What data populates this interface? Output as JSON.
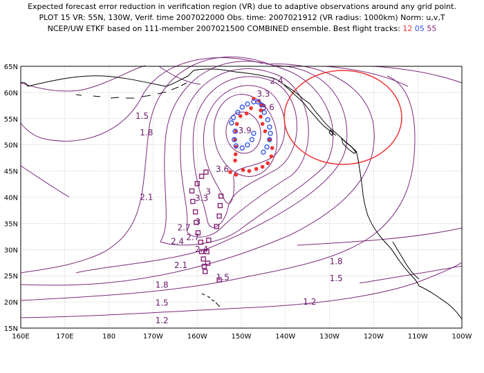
{
  "title": {
    "line1": "Expected forecast error reduction in verification region (VR) due to adaptive observations around any grid point.",
    "line2": "PLOT 15 VR: 55N, 130W, Verif. time 2007022000 Obs. time: 2007021912 (VR radius: 1000km) Norm: u,v,T",
    "line3_prefix": "NCEP/UW ETKF based on 111-member 2007021500 COMBINED ensemble.  Best flight tracks: ",
    "track1": "12",
    "track2": "05",
    "track3": "55"
  },
  "colors": {
    "track1": "#ee3333",
    "track2": "#3355ee",
    "track3": "#882277",
    "contour": "#7a2a7a",
    "vr_circle": "#ee3333",
    "land": "#000000"
  },
  "axes": {
    "lat_labels": [
      "65N",
      "60N",
      "55N",
      "50N",
      "45N",
      "40N",
      "35N",
      "30N",
      "25N",
      "20N",
      "15N"
    ],
    "lon_labels": [
      "160E",
      "170E",
      "180",
      "170W",
      "160W",
      "150W",
      "140W",
      "130W",
      "120W",
      "110W",
      "100W"
    ]
  },
  "contour_labels": [
    {
      "text": "1.5"
    },
    {
      "text": "1.8"
    },
    {
      "text": "2.1"
    },
    {
      "text": "2.4"
    },
    {
      "text": "2.7"
    },
    {
      "text": "3"
    },
    {
      "text": "3.3"
    },
    {
      "text": "3.6"
    },
    {
      "text": "3.9"
    },
    {
      "text": "2.1"
    },
    {
      "text": "1.8"
    },
    {
      "text": "1.5"
    },
    {
      "text": "1.2"
    },
    {
      "text": "1.5"
    },
    {
      "text": "1.8"
    },
    {
      "text": "1.2"
    },
    {
      "text": "2.4"
    },
    {
      "text": "2.7"
    },
    {
      "text": "3"
    },
    {
      "text": "3.3"
    },
    {
      "text": "3.6"
    },
    {
      "text": "2.4"
    },
    {
      "text": "1.5"
    }
  ],
  "verification_region": {
    "center_lat": 55,
    "center_lon": -130,
    "radius_km": 1000
  },
  "flight_tracks": [
    {
      "name": "12",
      "points": [
        [
          44.8,
          -152.5
        ],
        [
          44.3,
          -151.2
        ],
        [
          45.2,
          -149.6
        ],
        [
          45.0,
          -148.2
        ],
        [
          45.4,
          -146.6
        ],
        [
          45.8,
          -145.2
        ],
        [
          46.5,
          -144.0
        ],
        [
          47.8,
          -143.2
        ],
        [
          49.4,
          -143.0
        ],
        [
          51.0,
          -143.6
        ],
        [
          52.6,
          -144.6
        ],
        [
          54.0,
          -145.2
        ],
        [
          55.4,
          -145.6
        ],
        [
          56.6,
          -145.6
        ],
        [
          57.6,
          -145.4
        ],
        [
          58.4,
          -146.0
        ],
        [
          58.8,
          -147.2
        ],
        [
          57.0,
          -147.8
        ],
        [
          56.0,
          -148.8
        ],
        [
          55.5,
          -150.2
        ],
        [
          54.0,
          -151.0
        ],
        [
          52.6,
          -151.2
        ],
        [
          51.0,
          -151.4
        ],
        [
          49.6,
          -151.2
        ],
        [
          48.2,
          -151.3
        ],
        [
          47.0,
          -151.4
        ]
      ]
    },
    {
      "name": "05",
      "points": [
        [
          52.2,
          -147.2
        ],
        [
          51.0,
          -147.6
        ],
        [
          50.0,
          -148.6
        ],
        [
          49.4,
          -149.8
        ],
        [
          49.8,
          -151.2
        ],
        [
          51.0,
          -151.6
        ],
        [
          52.6,
          -151.4
        ],
        [
          54.2,
          -152.2
        ],
        [
          55.2,
          -151.8
        ],
        [
          56.2,
          -150.8
        ],
        [
          57.2,
          -149.8
        ],
        [
          57.8,
          -148.6
        ],
        [
          58.2,
          -147.2
        ],
        [
          58.2,
          -146.2
        ],
        [
          57.6,
          -145.4
        ],
        [
          56.2,
          -144.8
        ],
        [
          54.8,
          -144.0
        ],
        [
          53.4,
          -143.6
        ],
        [
          52.2,
          -143.4
        ],
        [
          51.0,
          -143.6
        ],
        [
          49.6,
          -144.2
        ],
        [
          48.6,
          -145.0
        ]
      ]
    },
    {
      "name": "55",
      "points": [
        [
          44.8,
          -158.0
        ],
        [
          44.0,
          -159.0
        ],
        [
          42.6,
          -160.0
        ],
        [
          41.2,
          -161.2
        ],
        [
          39.2,
          -161.0
        ],
        [
          37.2,
          -160.4
        ],
        [
          35.2,
          -160.2
        ],
        [
          33.2,
          -159.8
        ],
        [
          31.4,
          -159.2
        ],
        [
          29.6,
          -159.0
        ],
        [
          28.2,
          -158.6
        ],
        [
          26.8,
          -158.4
        ],
        [
          25.8,
          -158.2
        ],
        [
          27.4,
          -157.6
        ],
        [
          29.6,
          -157.8
        ],
        [
          31.8,
          -157.4
        ],
        [
          34.4,
          -155.6
        ],
        [
          36.4,
          -155.0
        ],
        [
          38.4,
          -154.8
        ],
        [
          40.2,
          -154.6
        ],
        [
          24.2,
          -155.0
        ]
      ]
    }
  ]
}
